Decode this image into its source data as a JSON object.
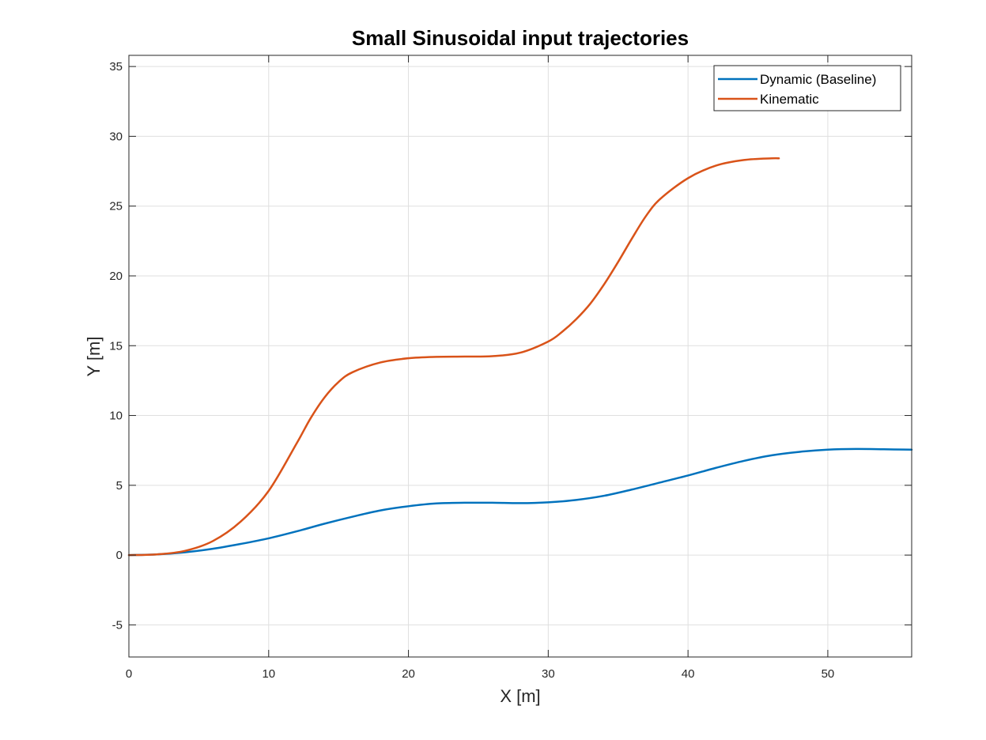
{
  "chart_data": {
    "type": "line",
    "title": "Small Sinusoidal input trajectories",
    "xlabel": "X [m]",
    "ylabel": "Y [m]",
    "xlim": [
      0,
      56
    ],
    "ylim": [
      -7.3,
      35.8
    ],
    "xticks": [
      0,
      10,
      20,
      30,
      40,
      50
    ],
    "yticks": [
      -5,
      0,
      5,
      10,
      15,
      20,
      25,
      30,
      35
    ],
    "grid": true,
    "legend_position": "top-right",
    "series": [
      {
        "name": "Dynamic (Baseline)",
        "color": "#0072BD",
        "x": [
          0,
          2,
          4,
          6,
          8,
          10,
          12,
          14,
          16,
          18,
          20,
          22,
          24,
          26,
          28,
          30,
          32,
          34,
          36,
          38,
          40,
          42,
          44,
          46,
          48,
          50,
          52,
          54,
          56
        ],
        "y": [
          0,
          0.05,
          0.2,
          0.45,
          0.8,
          1.2,
          1.7,
          2.25,
          2.75,
          3.2,
          3.5,
          3.7,
          3.75,
          3.75,
          3.72,
          3.78,
          3.95,
          4.25,
          4.7,
          5.2,
          5.7,
          6.25,
          6.75,
          7.15,
          7.4,
          7.55,
          7.6,
          7.58,
          7.55
        ]
      },
      {
        "name": "Kinematic",
        "color": "#D95319",
        "x": [
          0,
          2,
          4,
          6,
          8,
          10,
          12,
          13,
          14,
          15,
          16,
          18,
          20,
          22,
          24,
          26,
          28,
          30,
          31,
          32,
          33,
          34,
          35,
          36,
          37,
          38,
          40,
          42,
          44,
          46,
          46.5
        ],
        "y": [
          0,
          0.05,
          0.3,
          1.0,
          2.4,
          4.6,
          8.0,
          9.8,
          11.3,
          12.4,
          13.1,
          13.8,
          14.1,
          14.2,
          14.22,
          14.25,
          14.5,
          15.3,
          16.0,
          16.9,
          18.0,
          19.4,
          21.0,
          22.7,
          24.3,
          25.5,
          27.0,
          27.9,
          28.3,
          28.42,
          28.42
        ]
      }
    ]
  }
}
